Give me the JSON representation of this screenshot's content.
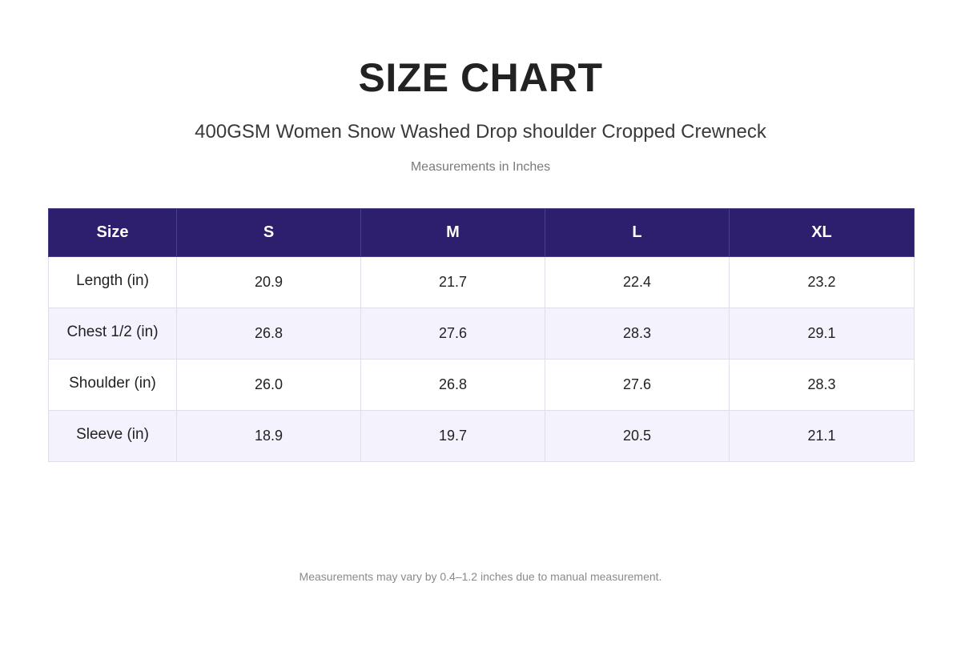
{
  "header": {
    "title": "SIZE CHART",
    "product_name": "400GSM Women Snow Washed Drop shoulder Cropped Crewneck",
    "units_note": "Measurements in Inches"
  },
  "table": {
    "columns": [
      "Size",
      "S",
      "M",
      "L",
      "XL"
    ],
    "rows": [
      {
        "label": "Length (in)",
        "values": [
          "20.9",
          "21.7",
          "22.4",
          "23.2"
        ]
      },
      {
        "label": "Chest 1/2 (in)",
        "values": [
          "26.8",
          "27.6",
          "28.3",
          "29.1"
        ]
      },
      {
        "label": "Shoulder (in)",
        "values": [
          "26.0",
          "26.8",
          "27.6",
          "28.3"
        ]
      },
      {
        "label": "Sleeve (in)",
        "values": [
          "18.9",
          "19.7",
          "20.5",
          "21.1"
        ]
      }
    ]
  },
  "footer": {
    "note": "Measurements may vary by 0.4–1.2 inches due to manual measurement."
  },
  "colors": {
    "header_bg": "#2e1f6e",
    "alt_row_bg": "#f4f2fd"
  }
}
